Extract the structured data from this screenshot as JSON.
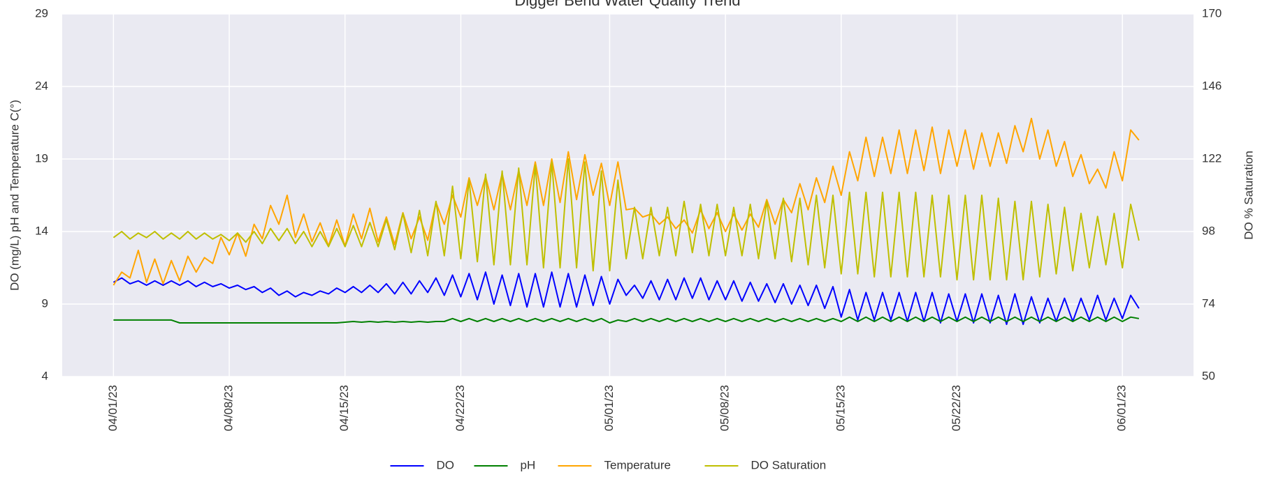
{
  "chart_data": {
    "type": "line",
    "title": "Digger Bend Water Quality Trend",
    "ylabel": "DO (mg/L) pH and Temperature C(°)",
    "y2label": "DO % Saturation",
    "x": [
      0,
      0.5,
      1,
      1.5,
      2,
      2.5,
      3,
      3.5,
      4,
      4.5,
      5,
      5.5,
      6,
      6.5,
      7,
      7.5,
      8,
      8.5,
      9,
      9.5,
      10,
      10.5,
      11,
      11.5,
      12,
      12.5,
      13,
      13.5,
      14,
      14.5,
      15,
      15.5,
      16,
      16.5,
      17,
      17.5,
      18,
      18.5,
      19,
      19.5,
      20,
      20.5,
      21,
      21.5,
      22,
      22.5,
      23,
      23.5,
      24,
      24.5,
      25,
      25.5,
      26,
      26.5,
      27,
      27.5,
      28,
      28.5,
      29,
      29.5,
      30,
      30.5,
      31,
      31.5,
      32,
      32.5,
      33,
      33.5,
      34,
      34.5,
      35,
      35.5,
      36,
      36.5,
      37,
      37.5,
      38,
      38.5,
      39,
      39.5,
      40,
      40.5,
      41,
      41.5,
      42,
      42.5,
      43,
      43.5,
      44,
      44.5,
      45,
      45.5,
      46,
      46.5,
      47,
      47.5,
      48,
      48.5,
      49,
      49.5,
      50,
      50.5,
      51,
      51.5,
      52,
      52.5,
      53,
      53.5,
      54,
      54.5,
      55,
      55.5,
      56,
      56.5,
      57,
      57.5,
      58,
      58.5,
      59,
      59.5,
      60,
      60.5,
      61,
      61.5,
      62
    ],
    "xlim": [
      -3.1,
      65.3
    ],
    "xticks": [
      {
        "value": 0,
        "label": "04/01/23"
      },
      {
        "value": 7,
        "label": "04/08/23"
      },
      {
        "value": 14,
        "label": "04/15/23"
      },
      {
        "value": 21,
        "label": "04/22/23"
      },
      {
        "value": 30,
        "label": "05/01/23"
      },
      {
        "value": 37,
        "label": "05/08/23"
      },
      {
        "value": 44,
        "label": "05/15/23"
      },
      {
        "value": 51,
        "label": "05/22/23"
      },
      {
        "value": 61,
        "label": "06/01/23"
      }
    ],
    "ylim": [
      4,
      29
    ],
    "yticks": [
      4,
      9,
      14,
      19,
      24,
      29
    ],
    "y2lim": [
      50,
      170
    ],
    "y2ticks": [
      50,
      74,
      98,
      122,
      146,
      170
    ],
    "grid": true,
    "legend": "bottom",
    "series": [
      {
        "name": "DO",
        "color": "#0000ff",
        "values": [
          10.5,
          10.8,
          10.4,
          10.6,
          10.3,
          10.6,
          10.3,
          10.6,
          10.3,
          10.6,
          10.2,
          10.5,
          10.2,
          10.4,
          10.1,
          10.3,
          10.0,
          10.2,
          9.8,
          10.1,
          9.6,
          9.9,
          9.5,
          9.8,
          9.6,
          9.9,
          9.7,
          10.1,
          9.8,
          10.2,
          9.8,
          10.3,
          9.8,
          10.4,
          9.7,
          10.5,
          9.7,
          10.6,
          9.8,
          10.8,
          9.6,
          11.0,
          9.5,
          11.1,
          9.3,
          11.2,
          9.0,
          11.0,
          8.9,
          11.1,
          8.8,
          11.1,
          8.8,
          11.2,
          8.8,
          11.1,
          8.8,
          11.0,
          8.9,
          10.9,
          9.0,
          10.7,
          9.6,
          10.3,
          9.4,
          10.6,
          9.3,
          10.7,
          9.3,
          10.8,
          9.4,
          10.8,
          9.3,
          10.6,
          9.3,
          10.6,
          9.2,
          10.5,
          9.2,
          10.4,
          9.1,
          10.4,
          9.0,
          10.3,
          8.9,
          10.3,
          8.7,
          10.2,
          8.1,
          10.0,
          7.9,
          9.8,
          7.9,
          9.8,
          7.9,
          9.8,
          7.8,
          9.8,
          7.8,
          9.8,
          7.7,
          9.7,
          7.8,
          9.7,
          7.7,
          9.7,
          7.7,
          9.6,
          7.6,
          9.7,
          7.6,
          9.5,
          7.7,
          9.4,
          7.8,
          9.4,
          7.8,
          9.4,
          7.9,
          9.6,
          7.9,
          9.4,
          8.0,
          9.6,
          8.7
        ]
      },
      {
        "name": "pH",
        "color": "#008000",
        "values": [
          7.9,
          7.9,
          7.9,
          7.9,
          7.9,
          7.9,
          7.9,
          7.9,
          7.7,
          7.7,
          7.7,
          7.7,
          7.7,
          7.7,
          7.7,
          7.7,
          7.7,
          7.7,
          7.7,
          7.7,
          7.7,
          7.7,
          7.7,
          7.7,
          7.7,
          7.7,
          7.7,
          7.7,
          7.75,
          7.8,
          7.75,
          7.8,
          7.75,
          7.8,
          7.75,
          7.8,
          7.75,
          7.8,
          7.75,
          7.8,
          7.8,
          8.0,
          7.8,
          8.0,
          7.8,
          8.0,
          7.8,
          8.0,
          7.8,
          8.0,
          7.8,
          8.0,
          7.8,
          8.0,
          7.8,
          8.0,
          7.8,
          8.0,
          7.8,
          8.0,
          7.7,
          7.9,
          7.8,
          8.0,
          7.8,
          8.0,
          7.8,
          8.0,
          7.8,
          8.0,
          7.8,
          8.0,
          7.8,
          8.0,
          7.8,
          8.0,
          7.8,
          8.0,
          7.8,
          8.0,
          7.8,
          8.0,
          7.8,
          8.0,
          7.8,
          8.0,
          7.8,
          8.0,
          7.8,
          8.1,
          7.8,
          8.1,
          7.8,
          8.1,
          7.8,
          8.1,
          7.8,
          8.1,
          7.8,
          8.1,
          7.8,
          8.1,
          7.8,
          8.1,
          7.8,
          8.1,
          7.8,
          8.1,
          7.8,
          8.1,
          7.8,
          8.1,
          7.8,
          8.1,
          7.8,
          8.1,
          7.8,
          8.1,
          7.8,
          8.1,
          7.8,
          8.1,
          7.8,
          8.1,
          8.0
        ]
      },
      {
        "name": "Temperature",
        "color": "#ffa500",
        "values": [
          10.3,
          11.2,
          10.8,
          12.7,
          10.5,
          12.1,
          10.4,
          12.0,
          10.6,
          12.3,
          11.2,
          12.2,
          11.8,
          13.6,
          12.4,
          13.9,
          12.3,
          14.5,
          13.5,
          15.8,
          14.5,
          16.5,
          13.6,
          15.2,
          13.3,
          14.6,
          13.0,
          14.8,
          13.0,
          15.2,
          13.5,
          15.6,
          13.3,
          15.0,
          13.1,
          15.3,
          13.5,
          15.0,
          13.4,
          16.0,
          14.5,
          16.5,
          15.0,
          17.7,
          15.8,
          17.8,
          15.5,
          18.0,
          15.5,
          18.2,
          15.8,
          18.8,
          15.8,
          19.0,
          16.0,
          19.5,
          16.2,
          19.3,
          16.5,
          18.7,
          15.8,
          18.8,
          15.5,
          15.6,
          15.0,
          15.2,
          14.5,
          15.0,
          14.2,
          14.8,
          13.9,
          15.5,
          14.2,
          15.3,
          14.0,
          15.2,
          14.1,
          15.2,
          14.3,
          16.2,
          14.5,
          16.2,
          15.3,
          17.3,
          15.5,
          17.7,
          16.0,
          18.5,
          16.5,
          19.5,
          17.5,
          20.5,
          17.8,
          20.5,
          18.0,
          21.0,
          18.0,
          21.0,
          18.2,
          21.2,
          18.0,
          21.0,
          18.5,
          21.0,
          18.3,
          20.8,
          18.5,
          20.8,
          18.7,
          21.3,
          19.5,
          21.8,
          19.0,
          21.0,
          18.5,
          20.2,
          17.8,
          19.3,
          17.3,
          18.3,
          17.0,
          19.5,
          17.5,
          21.0,
          20.3
        ]
      },
      {
        "name": "DO Saturation",
        "color": "#bfbf00",
        "axis": "y2",
        "values": [
          96,
          98,
          95.5,
          97.5,
          96,
          98,
          95.5,
          97.5,
          95.5,
          98,
          95.5,
          97.5,
          95.5,
          97,
          95,
          97.5,
          94.5,
          98,
          94,
          99,
          95,
          99,
          94,
          98,
          93,
          98,
          93,
          99,
          93,
          100,
          93,
          101,
          93,
          102,
          92,
          104,
          91,
          105,
          90,
          108,
          90,
          113,
          89,
          115,
          88,
          117,
          87,
          118,
          87,
          119,
          87,
          120,
          86,
          121,
          86,
          122,
          86,
          121,
          85,
          118,
          85,
          115,
          89,
          106,
          89,
          106,
          90,
          106,
          90,
          108,
          91,
          107,
          90,
          107,
          90,
          106,
          90,
          107,
          89,
          108,
          89,
          109,
          88,
          109,
          87,
          110,
          86,
          110,
          84,
          111,
          84,
          111,
          83,
          111,
          83,
          111,
          83,
          111,
          83,
          110,
          83,
          110,
          82,
          110,
          82,
          110,
          82,
          109,
          82,
          108,
          82,
          108,
          83,
          107,
          84,
          106,
          85,
          104,
          86,
          103,
          87,
          104,
          86,
          107,
          95
        ]
      }
    ]
  }
}
